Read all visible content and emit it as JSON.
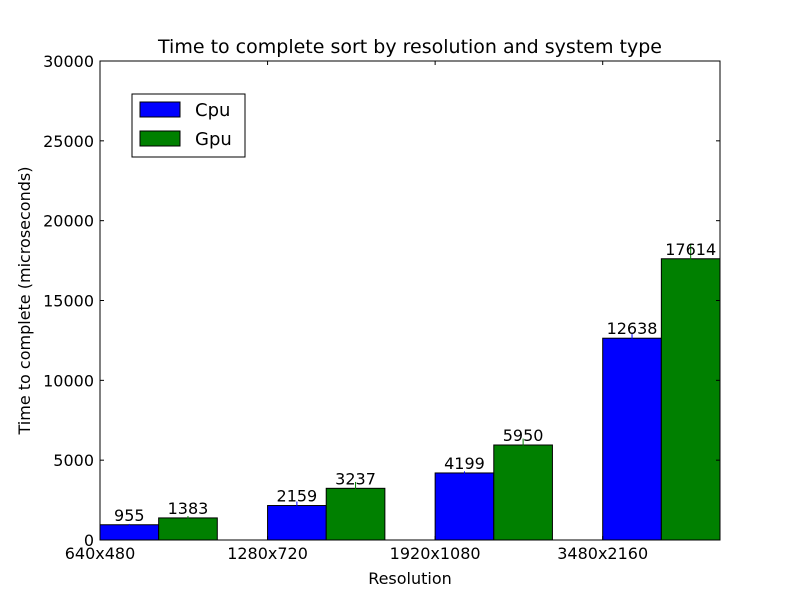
{
  "chart_data": {
    "type": "bar",
    "title": "Time to complete sort by resolution and system type",
    "xlabel": "Resolution",
    "ylabel": "Time to complete (microseconds)",
    "categories": [
      "640x480",
      "1280x720",
      "1920x1080",
      "3480x2160"
    ],
    "series": [
      {
        "name": "Cpu",
        "color": "#0000ff",
        "values": [
          955,
          2159,
          4199,
          12638
        ],
        "errors": [
          50,
          250,
          100,
          350
        ]
      },
      {
        "name": "Gpu",
        "color": "#008000",
        "values": [
          1383,
          3237,
          5950,
          17614
        ],
        "errors": [
          120,
          400,
          400,
          950
        ]
      }
    ],
    "ylim": [
      0,
      30000
    ],
    "yticks": [
      0,
      5000,
      10000,
      15000,
      20000,
      25000,
      30000
    ],
    "legend_position": "upper-left",
    "grid": false
  }
}
